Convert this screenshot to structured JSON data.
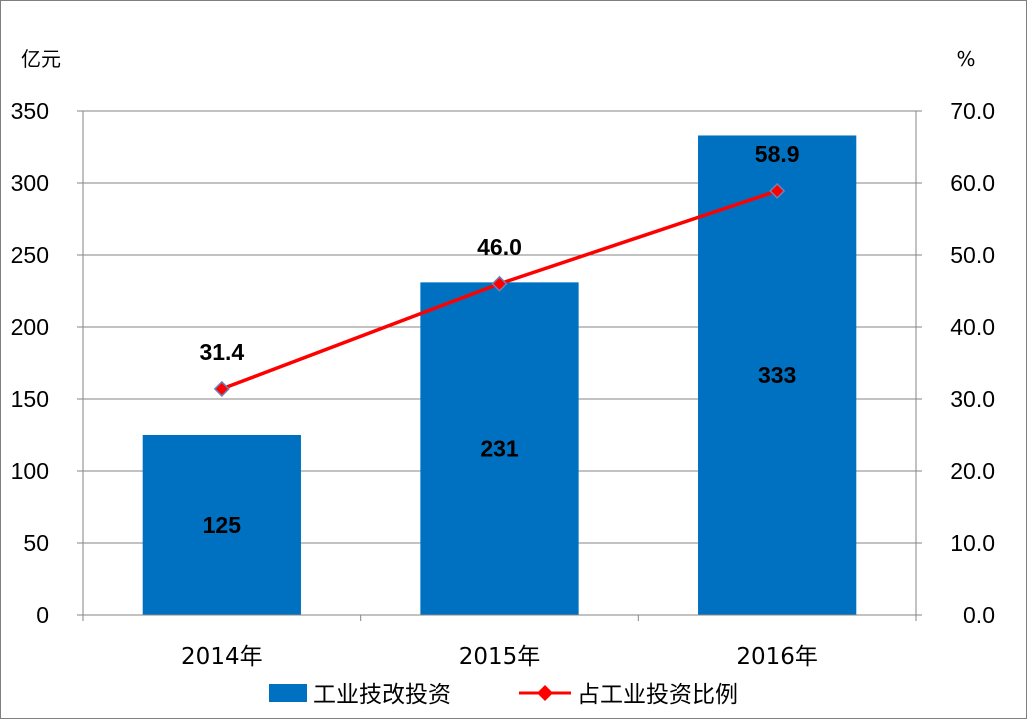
{
  "chart_data": {
    "type": "bar",
    "categories": [
      "2014年",
      "2015年",
      "2016年"
    ],
    "series": [
      {
        "name": "工业技改投资",
        "type": "bar",
        "axis": "left",
        "color": "#0070c0",
        "values": [
          125,
          231,
          333
        ],
        "labels": [
          "125",
          "231",
          "333"
        ]
      },
      {
        "name": "占工业投资比例",
        "type": "line",
        "axis": "right",
        "color": "#ff0000",
        "marker_color": "#ff0000",
        "values": [
          31.4,
          46.0,
          58.9
        ],
        "labels": [
          "31.4",
          "46.0",
          "58.9"
        ]
      }
    ],
    "y_left": {
      "unit": "亿元",
      "min": 0,
      "max": 350,
      "ticks": [
        "0",
        "50",
        "100",
        "150",
        "200",
        "250",
        "300",
        "350"
      ]
    },
    "y_right": {
      "unit": "%",
      "min": 0,
      "max": 70,
      "ticks": [
        "0.0",
        "10.0",
        "20.0",
        "30.0",
        "40.0",
        "50.0",
        "60.0",
        "70.0"
      ]
    },
    "grid": true,
    "legend_position": "bottom",
    "title": "",
    "xlabel": ""
  }
}
